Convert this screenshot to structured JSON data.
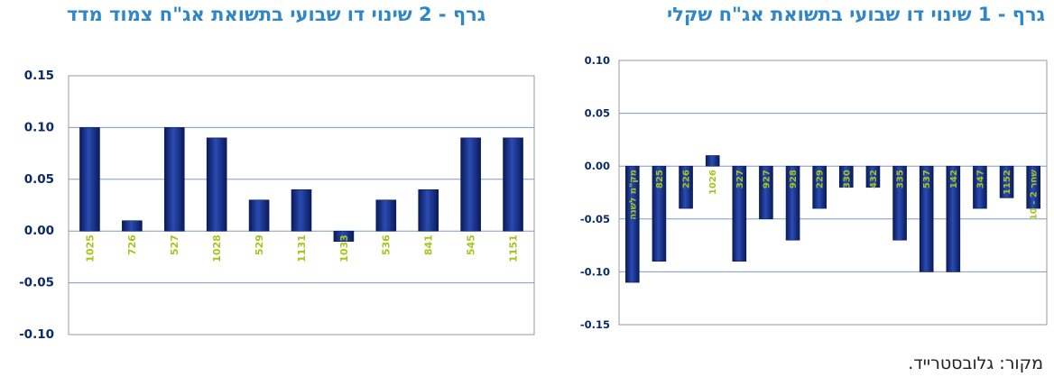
{
  "chart_data": [
    {
      "id": "chart2",
      "type": "bar",
      "title": "גרף - 2  שינוי דו שבועי בתשואת אג\"ח צמוד מדד",
      "categories": [
        "1025",
        "726",
        "527",
        "1028",
        "529",
        "1131",
        "1033",
        "536",
        "841",
        "545",
        "1151"
      ],
      "values": [
        0.1,
        0.01,
        0.1,
        0.09,
        0.03,
        0.04,
        -0.01,
        0.03,
        0.04,
        0.09,
        0.09
      ],
      "yticks": [
        "0.15",
        "0.10",
        "0.05",
        "0.00",
        "-0.05",
        "-0.10"
      ],
      "ylim": [
        -0.1,
        0.15
      ],
      "grid": true
    },
    {
      "id": "chart1",
      "type": "bar",
      "title": "גרף - 1  שינוי דו שבועי בתשואת אג\"ח שקלי",
      "categories": [
        "מק\"מ לשנה",
        "825",
        "226",
        "1026",
        "327",
        "927",
        "928",
        "229",
        "330",
        "432",
        "335",
        "537",
        "142",
        "347",
        "1152",
        "שחר 2 - 10"
      ],
      "values": [
        -0.11,
        -0.09,
        -0.04,
        0.01,
        -0.09,
        -0.05,
        -0.07,
        -0.04,
        -0.02,
        -0.02,
        -0.07,
        -0.1,
        -0.1,
        -0.04,
        -0.03,
        -0.04
      ],
      "yticks": [
        "0.10",
        "0.05",
        "0.00",
        "-0.05",
        "-0.10",
        "-0.15"
      ],
      "ylim": [
        -0.15,
        0.1
      ],
      "grid": true
    }
  ],
  "source_note": "מקור: גלובסטרייד.",
  "colors": {
    "bar": "#142b86",
    "bar_dark": "#0a1a5a",
    "bar_light": "#2a4bb3",
    "tick_label": "#a6c51a",
    "title": "#2f86c8",
    "grid": "#7e9cc4",
    "axis_text": "#0b2a6a"
  }
}
